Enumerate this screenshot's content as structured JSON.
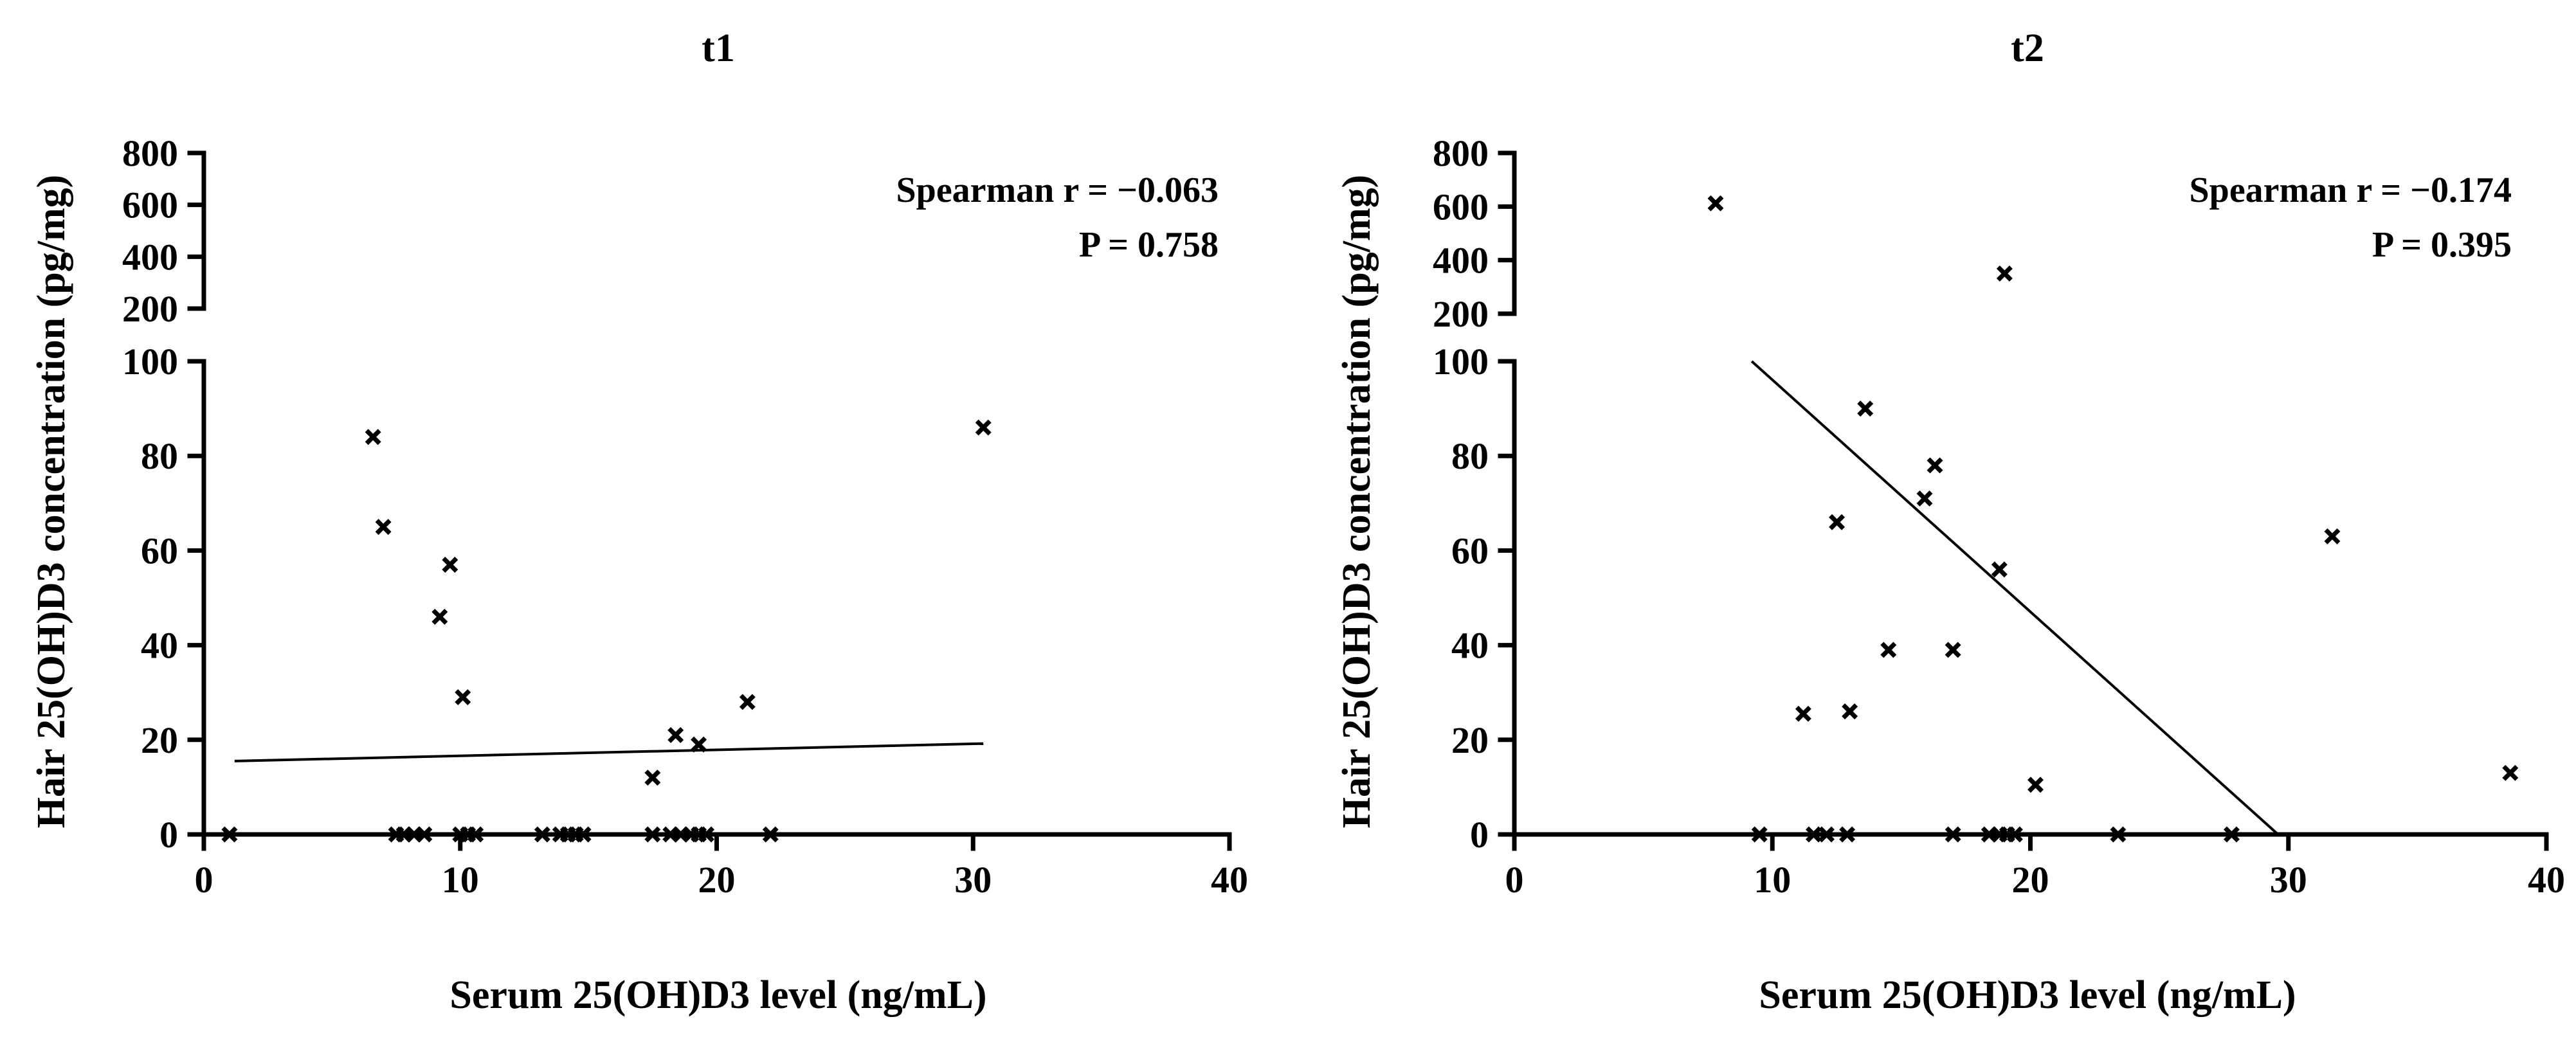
{
  "chart_data": [
    {
      "type": "scatter",
      "title": "t1",
      "xlabel": "Serum 25(OH)D3 level (ng/mL)",
      "ylabel": "Hair 25(OH)D3 concentration (pg/mg)",
      "xlim": [
        0,
        40
      ],
      "xticks": [
        0,
        10,
        20,
        30,
        40
      ],
      "ylim_lower": [
        0,
        100
      ],
      "yticks_lower": [
        0,
        20,
        40,
        60,
        80,
        100
      ],
      "ylim_upper": [
        200,
        800
      ],
      "yticks_upper": [
        200,
        400,
        600,
        800
      ],
      "annotation": {
        "line1": "Spearman r = −0.063",
        "line2": "P = 0.758"
      },
      "marker": "x",
      "points": [
        {
          "x": 1.0,
          "y": 0
        },
        {
          "x": 7.5,
          "y": 0
        },
        {
          "x": 7.8,
          "y": 0
        },
        {
          "x": 8.2,
          "y": 0
        },
        {
          "x": 8.6,
          "y": 0
        },
        {
          "x": 10.0,
          "y": 0
        },
        {
          "x": 10.3,
          "y": 0
        },
        {
          "x": 10.6,
          "y": 0
        },
        {
          "x": 13.2,
          "y": 0
        },
        {
          "x": 13.9,
          "y": 0
        },
        {
          "x": 14.2,
          "y": 0
        },
        {
          "x": 14.5,
          "y": 0
        },
        {
          "x": 14.8,
          "y": 0
        },
        {
          "x": 17.5,
          "y": 0
        },
        {
          "x": 18.2,
          "y": 0
        },
        {
          "x": 18.6,
          "y": 0
        },
        {
          "x": 19.0,
          "y": 0
        },
        {
          "x": 19.3,
          "y": 0
        },
        {
          "x": 19.6,
          "y": 0
        },
        {
          "x": 22.1,
          "y": 0
        },
        {
          "x": 6.6,
          "y": 84
        },
        {
          "x": 7.0,
          "y": 65
        },
        {
          "x": 9.6,
          "y": 57
        },
        {
          "x": 9.2,
          "y": 46
        },
        {
          "x": 10.1,
          "y": 29
        },
        {
          "x": 17.5,
          "y": 12
        },
        {
          "x": 18.4,
          "y": 21
        },
        {
          "x": 19.3,
          "y": 19
        },
        {
          "x": 21.2,
          "y": 28
        },
        {
          "x": 30.4,
          "y": 86
        }
      ],
      "fit_line": {
        "x": [
          1.2,
          30.4
        ],
        "y": [
          15.5,
          19.2
        ]
      }
    },
    {
      "type": "scatter",
      "title": "t2",
      "xlabel": "Serum 25(OH)D3 level (ng/mL)",
      "ylabel": "Hair 25(OH)D3 concentration (pg/mg)",
      "xlim": [
        0,
        40
      ],
      "xticks": [
        0,
        10,
        20,
        30,
        40
      ],
      "ylim_lower": [
        0,
        100
      ],
      "yticks_lower": [
        0,
        20,
        40,
        60,
        80,
        100
      ],
      "ylim_upper": [
        200,
        800
      ],
      "yticks_upper": [
        200,
        400,
        600,
        800
      ],
      "annotation": {
        "line1": "Spearman r = −0.174",
        "line2": "P = 0.395"
      },
      "marker": "x",
      "points": [
        {
          "x": 9.5,
          "y": 0
        },
        {
          "x": 11.6,
          "y": 0
        },
        {
          "x": 12.1,
          "y": 0
        },
        {
          "x": 12.9,
          "y": 0
        },
        {
          "x": 17.0,
          "y": 0
        },
        {
          "x": 18.4,
          "y": 0
        },
        {
          "x": 18.8,
          "y": 0
        },
        {
          "x": 19.1,
          "y": 0
        },
        {
          "x": 19.4,
          "y": 0
        },
        {
          "x": 23.4,
          "y": 0
        },
        {
          "x": 27.8,
          "y": 0
        },
        {
          "x": 7.8,
          "y": 612
        },
        {
          "x": 19.0,
          "y": 350
        },
        {
          "x": 11.2,
          "y": 25.5
        },
        {
          "x": 12.5,
          "y": 66
        },
        {
          "x": 13.0,
          "y": 26
        },
        {
          "x": 13.6,
          "y": 90
        },
        {
          "x": 14.5,
          "y": 39
        },
        {
          "x": 15.9,
          "y": 71
        },
        {
          "x": 16.3,
          "y": 78
        },
        {
          "x": 17.0,
          "y": 39
        },
        {
          "x": 18.8,
          "y": 56
        },
        {
          "x": 20.2,
          "y": 10.5
        },
        {
          "x": 31.7,
          "y": 63
        },
        {
          "x": 38.6,
          "y": 13
        }
      ],
      "fit_line": {
        "x": [
          9.2,
          29.6
        ],
        "y": [
          100,
          0
        ]
      }
    }
  ]
}
